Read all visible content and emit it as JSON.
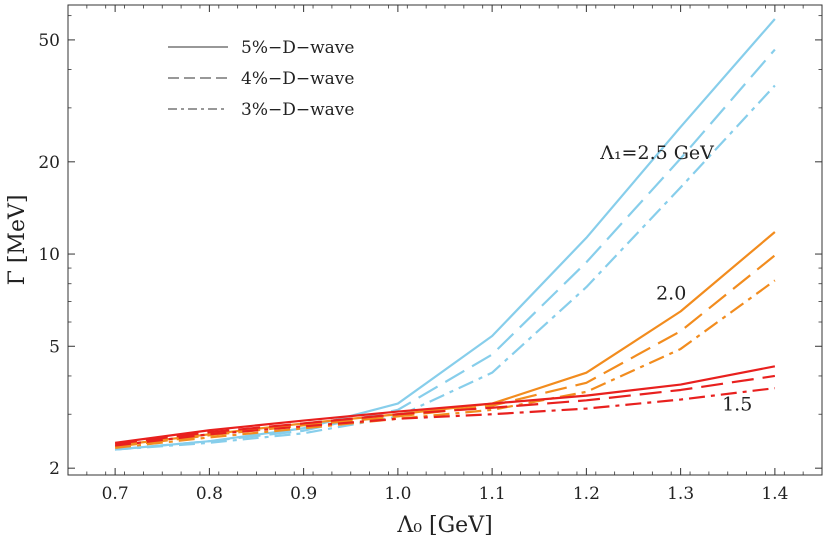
{
  "chart_data": {
    "type": "line",
    "xlabel": "Λ₀ [GeV]",
    "ylabel": "Γ [MeV]",
    "xlim": [
      0.65,
      1.45
    ],
    "ylim": [
      1.9,
      65
    ],
    "yscale": "log",
    "grid": false,
    "x_ticks": [
      0.7,
      0.8,
      0.9,
      1.0,
      1.1,
      1.2,
      1.3,
      1.4
    ],
    "x_tick_labels": [
      "0.7",
      "0.8",
      "0.9",
      "1.0",
      "1.1",
      "1.2",
      "1.3",
      "1.4"
    ],
    "y_ticks": [
      2,
      5,
      10,
      20,
      50
    ],
    "y_tick_labels": [
      "2",
      "5",
      "10",
      "20",
      "50"
    ],
    "legend": {
      "placement": "top-left",
      "entries": [
        {
          "label": "5%−D−wave",
          "dash": "solid"
        },
        {
          "label": "4%−D−wave",
          "dash": "dashed"
        },
        {
          "label": "3%−D−wave",
          "dash": "dashdot"
        }
      ]
    },
    "x": [
      0.7,
      0.8,
      0.9,
      1.0,
      1.1,
      1.2,
      1.3,
      1.4
    ],
    "series": [
      {
        "group": "Λ1=2.5",
        "wave": "5%",
        "dash": "solid",
        "color": "#87CEEB",
        "values": [
          2.3,
          2.45,
          2.7,
          3.25,
          5.4,
          11.3,
          26.0,
          58.5
        ]
      },
      {
        "group": "Λ1=2.5",
        "wave": "4%",
        "dash": "dashed",
        "color": "#87CEEB",
        "values": [
          2.3,
          2.45,
          2.65,
          3.1,
          4.7,
          9.4,
          20.5,
          46.5
        ]
      },
      {
        "group": "Λ1=2.5",
        "wave": "3%",
        "dash": "dashdot",
        "color": "#87CEEB",
        "values": [
          2.3,
          2.42,
          2.6,
          2.95,
          4.1,
          7.8,
          16.5,
          35.5
        ]
      },
      {
        "group": "Λ1=2.0",
        "wave": "5%",
        "dash": "solid",
        "color": "#F28C1E",
        "values": [
          2.37,
          2.58,
          2.8,
          3.0,
          3.25,
          4.1,
          6.5,
          11.8
        ]
      },
      {
        "group": "Λ1=2.0",
        "wave": "4%",
        "dash": "dashed",
        "color": "#F28C1E",
        "values": [
          2.35,
          2.56,
          2.76,
          2.95,
          3.2,
          3.8,
          5.6,
          9.9
        ]
      },
      {
        "group": "Λ1=2.0",
        "wave": "3%",
        "dash": "dashdot",
        "color": "#F28C1E",
        "values": [
          2.33,
          2.52,
          2.7,
          2.9,
          3.1,
          3.55,
          4.9,
          8.2
        ]
      },
      {
        "group": "Λ1=1.5",
        "wave": "5%",
        "dash": "solid",
        "color": "#E8201E",
        "values": [
          2.42,
          2.66,
          2.86,
          3.06,
          3.25,
          3.45,
          3.75,
          4.3
        ]
      },
      {
        "group": "Λ1=1.5",
        "wave": "4%",
        "dash": "dashed",
        "color": "#E8201E",
        "values": [
          2.4,
          2.62,
          2.8,
          3.0,
          3.15,
          3.33,
          3.6,
          4.0
        ]
      },
      {
        "group": "Λ1=1.5",
        "wave": "3%",
        "dash": "dashdot",
        "color": "#E8201E",
        "values": [
          2.37,
          2.58,
          2.74,
          2.9,
          3.0,
          3.13,
          3.35,
          3.65
        ]
      }
    ],
    "annotations": [
      {
        "text": "Λ₁=2.5 GeV",
        "x": 1.275,
        "y": 21.5
      },
      {
        "text": "2.0",
        "x": 1.29,
        "y": 7.5
      },
      {
        "text": "1.5",
        "x": 1.36,
        "y": 3.25
      }
    ]
  }
}
